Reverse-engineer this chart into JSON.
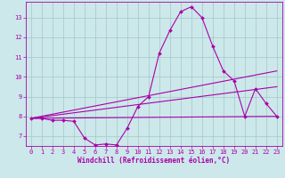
{
  "xlabel": "Windchill (Refroidissement éolien,°C)",
  "background_color": "#cce8ea",
  "grid_color": "#aacccc",
  "line_color": "#aa00aa",
  "xlim": [
    -0.5,
    23.5
  ],
  "ylim": [
    6.5,
    13.8
  ],
  "yticks": [
    7,
    8,
    9,
    10,
    11,
    12,
    13
  ],
  "xticks": [
    0,
    1,
    2,
    3,
    4,
    5,
    6,
    7,
    8,
    9,
    10,
    11,
    12,
    13,
    14,
    15,
    16,
    17,
    18,
    19,
    20,
    21,
    22,
    23
  ],
  "series1_x": [
    0,
    1,
    2,
    3,
    4,
    5,
    6,
    7,
    8,
    9,
    10,
    11,
    12,
    13,
    14,
    15,
    16,
    17,
    18,
    19,
    20,
    21,
    22,
    23
  ],
  "series1_y": [
    7.9,
    7.9,
    7.8,
    7.8,
    7.75,
    6.9,
    6.55,
    6.6,
    6.55,
    7.4,
    8.5,
    9.0,
    11.2,
    12.35,
    13.3,
    13.55,
    13.0,
    11.55,
    10.3,
    9.8,
    8.0,
    9.4,
    8.65,
    8.0
  ],
  "series2_x": [
    0,
    23
  ],
  "series2_y": [
    7.9,
    8.0
  ],
  "series3_x": [
    0,
    23
  ],
  "series3_y": [
    7.9,
    10.3
  ],
  "series4_x": [
    0,
    23
  ],
  "series4_y": [
    7.9,
    9.5
  ]
}
